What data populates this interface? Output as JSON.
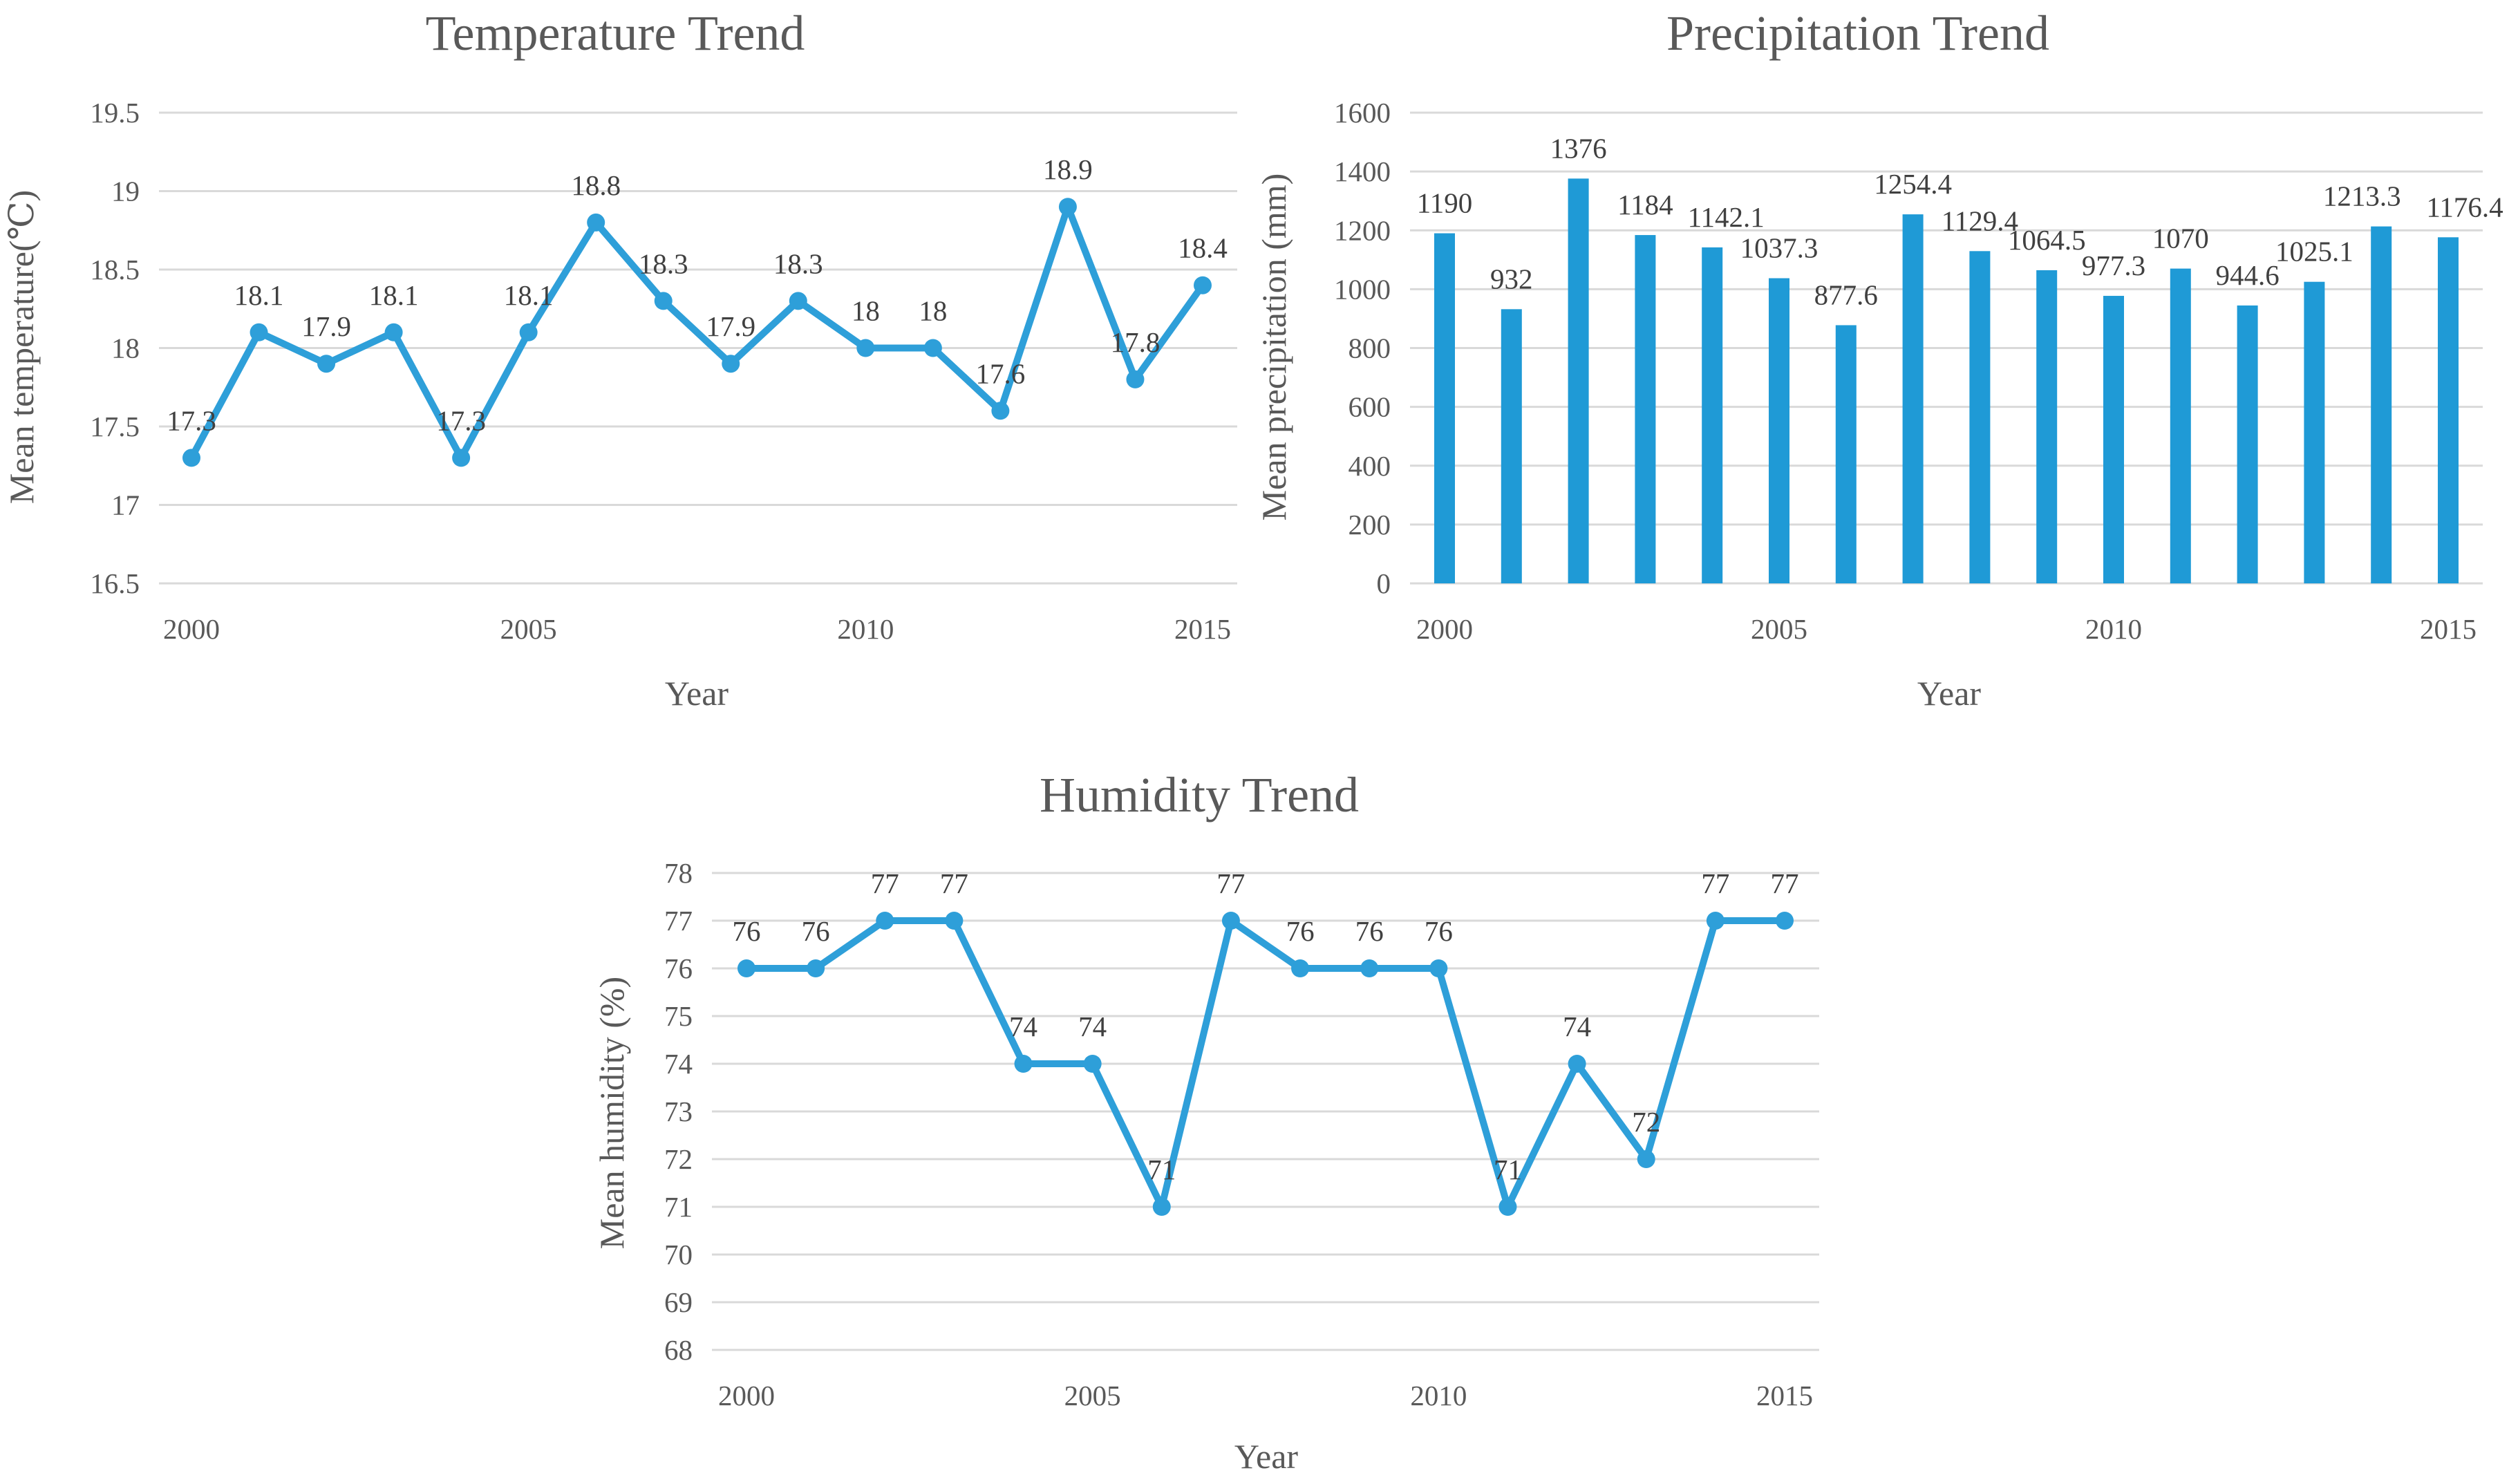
{
  "chart_data": [
    {
      "id": "temperature",
      "type": "line",
      "title": "Temperature Trend",
      "xlabel": "Year",
      "ylabel": "Mean temperature(℃)",
      "x": [
        2000,
        2001,
        2002,
        2003,
        2004,
        2005,
        2006,
        2007,
        2008,
        2009,
        2010,
        2011,
        2012,
        2013,
        2014,
        2015
      ],
      "values": [
        17.3,
        18.1,
        17.9,
        18.1,
        17.3,
        18.1,
        18.8,
        18.3,
        17.9,
        18.3,
        18,
        18,
        17.6,
        18.9,
        17.8,
        18.4
      ],
      "data_labels": [
        "17.3",
        "18.1",
        "17.9",
        "18.1",
        "17.3",
        "18.1",
        "18.8",
        "18.3",
        "17.9",
        "18.3",
        "18",
        "18",
        "17.6",
        "18.9",
        "17.8",
        "18.4"
      ],
      "xticks": [
        2000,
        2005,
        2010,
        2015
      ],
      "xtick_labels": [
        "2000",
        "2005",
        "2010",
        "2015"
      ],
      "yticks": [
        16.5,
        17,
        17.5,
        18,
        18.5,
        19,
        19.5
      ],
      "ytick_labels": [
        "16.5",
        "17",
        "17.5",
        "18",
        "18.5",
        "19",
        "19.5"
      ],
      "ylim": [
        16.5,
        19.5
      ],
      "xlim": [
        2000,
        2015
      ],
      "grid": true,
      "legend": "none",
      "color": "#2e9fd9"
    },
    {
      "id": "precipitation",
      "type": "bar",
      "title": "Precipitation Trend",
      "xlabel": "Year",
      "ylabel": "Mean precipitation (mm)",
      "x": [
        2000,
        2001,
        2002,
        2003,
        2004,
        2005,
        2006,
        2007,
        2008,
        2009,
        2010,
        2011,
        2012,
        2013,
        2014,
        2015
      ],
      "values": [
        1190,
        932,
        1376,
        1184,
        1142.1,
        1037.3,
        877.6,
        1254.4,
        1129.4,
        1064.5,
        977.3,
        1070,
        944.6,
        1025.1,
        1213.3,
        1176.4
      ],
      "data_labels": [
        "1190",
        "932",
        "1376",
        "1184",
        "1142.1",
        "1037.3",
        "877.6",
        "1254.4",
        "1129.4",
        "1064.5",
        "977.3",
        "1070",
        "944.6",
        "1025.1",
        "1213.3",
        "1176.4"
      ],
      "xticks": [
        2000,
        2005,
        2010,
        2015
      ],
      "xtick_labels": [
        "2000",
        "2005",
        "2010",
        "2015"
      ],
      "yticks": [
        0,
        200,
        400,
        600,
        800,
        1000,
        1200,
        1400,
        1600
      ],
      "ytick_labels": [
        "0",
        "200",
        "400",
        "600",
        "800",
        "1000",
        "1200",
        "1400",
        "1600"
      ],
      "ylim": [
        0,
        1600
      ],
      "xlim": [
        2000,
        2015
      ],
      "grid": true,
      "legend": "none",
      "color": "#1f9ad6"
    },
    {
      "id": "humidity",
      "type": "line",
      "title": "Humidity Trend",
      "xlabel": "Year",
      "ylabel": "Mean humidity (%)",
      "x": [
        2000,
        2001,
        2002,
        2003,
        2004,
        2005,
        2006,
        2007,
        2008,
        2009,
        2010,
        2011,
        2012,
        2013,
        2014,
        2015
      ],
      "values": [
        76,
        76,
        77,
        77,
        74,
        74,
        71,
        77,
        76,
        76,
        76,
        71,
        74,
        72,
        77,
        77
      ],
      "data_labels": [
        "76",
        "76",
        "77",
        "77",
        "74",
        "74",
        "71",
        "77",
        "76",
        "76",
        "76",
        "71",
        "74",
        "72",
        "77",
        "77"
      ],
      "xticks": [
        2000,
        2005,
        2010,
        2015
      ],
      "xtick_labels": [
        "2000",
        "2005",
        "2010",
        "2015"
      ],
      "yticks": [
        68,
        69,
        70,
        71,
        72,
        73,
        74,
        75,
        76,
        77,
        78
      ],
      "ytick_labels": [
        "68",
        "69",
        "70",
        "71",
        "72",
        "73",
        "74",
        "75",
        "76",
        "77",
        "78"
      ],
      "ylim": [
        68,
        78
      ],
      "xlim": [
        2000,
        2015
      ],
      "grid": true,
      "legend": "none",
      "color": "#2e9fd9"
    }
  ]
}
